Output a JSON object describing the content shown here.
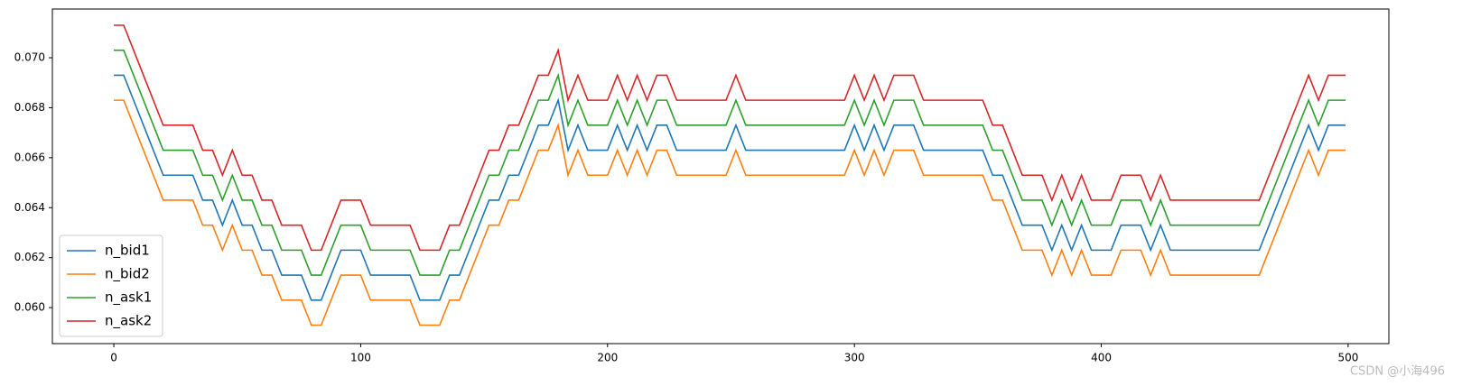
{
  "chart_data": {
    "type": "line",
    "x": [
      0,
      4,
      8,
      12,
      16,
      20,
      24,
      28,
      32,
      36,
      40,
      44,
      48,
      52,
      56,
      60,
      64,
      68,
      72,
      76,
      80,
      84,
      88,
      92,
      96,
      100,
      104,
      108,
      112,
      116,
      120,
      124,
      128,
      132,
      136,
      140,
      144,
      148,
      152,
      156,
      160,
      164,
      168,
      172,
      176,
      180,
      184,
      188,
      192,
      196,
      200,
      204,
      208,
      212,
      216,
      220,
      224,
      228,
      232,
      236,
      240,
      244,
      248,
      252,
      256,
      260,
      264,
      268,
      272,
      276,
      280,
      284,
      288,
      292,
      296,
      300,
      304,
      308,
      312,
      316,
      320,
      324,
      328,
      332,
      336,
      340,
      344,
      348,
      352,
      356,
      360,
      364,
      368,
      372,
      376,
      380,
      384,
      388,
      392,
      396,
      400,
      404,
      408,
      412,
      416,
      420,
      424,
      428,
      432,
      436,
      440,
      444,
      448,
      452,
      456,
      460,
      464,
      468,
      472,
      476,
      480,
      484,
      488,
      492,
      496,
      499
    ],
    "series": [
      {
        "name": "n_bid1",
        "color": "#1f77b4",
        "values": [
          0.0693,
          0.0693,
          0.0683,
          0.0673,
          0.0663,
          0.0653,
          0.0653,
          0.0653,
          0.0653,
          0.0643,
          0.0643,
          0.0633,
          0.0643,
          0.0633,
          0.0633,
          0.0623,
          0.0623,
          0.0613,
          0.0613,
          0.0613,
          0.0603,
          0.0603,
          0.0613,
          0.0623,
          0.0623,
          0.0623,
          0.0613,
          0.0613,
          0.0613,
          0.0613,
          0.0613,
          0.0603,
          0.0603,
          0.0603,
          0.0613,
          0.0613,
          0.0623,
          0.0633,
          0.0643,
          0.0643,
          0.0653,
          0.0653,
          0.0663,
          0.0673,
          0.0673,
          0.0683,
          0.0663,
          0.0673,
          0.0663,
          0.0663,
          0.0663,
          0.0673,
          0.0663,
          0.0673,
          0.0663,
          0.0673,
          0.0673,
          0.0663,
          0.0663,
          0.0663,
          0.0663,
          0.0663,
          0.0663,
          0.0673,
          0.0663,
          0.0663,
          0.0663,
          0.0663,
          0.0663,
          0.0663,
          0.0663,
          0.0663,
          0.0663,
          0.0663,
          0.0663,
          0.0673,
          0.0663,
          0.0673,
          0.0663,
          0.0673,
          0.0673,
          0.0673,
          0.0663,
          0.0663,
          0.0663,
          0.0663,
          0.0663,
          0.0663,
          0.0663,
          0.0653,
          0.0653,
          0.0643,
          0.0633,
          0.0633,
          0.0633,
          0.0623,
          0.0633,
          0.0623,
          0.0633,
          0.0623,
          0.0623,
          0.0623,
          0.0633,
          0.0633,
          0.0633,
          0.0623,
          0.0633,
          0.0623,
          0.0623,
          0.0623,
          0.0623,
          0.0623,
          0.0623,
          0.0623,
          0.0623,
          0.0623,
          0.0623,
          0.0633,
          0.0643,
          0.0653,
          0.0663,
          0.0673,
          0.0663,
          0.0673,
          0.0673,
          0.0673
        ]
      },
      {
        "name": "n_bid2",
        "color": "#ff7f0e",
        "values": [
          0.0683,
          0.0683,
          0.0673,
          0.0663,
          0.0653,
          0.0643,
          0.0643,
          0.0643,
          0.0643,
          0.0633,
          0.0633,
          0.0623,
          0.0633,
          0.0623,
          0.0623,
          0.0613,
          0.0613,
          0.0603,
          0.0603,
          0.0603,
          0.0593,
          0.0593,
          0.0603,
          0.0613,
          0.0613,
          0.0613,
          0.0603,
          0.0603,
          0.0603,
          0.0603,
          0.0603,
          0.0593,
          0.0593,
          0.0593,
          0.0603,
          0.0603,
          0.0613,
          0.0623,
          0.0633,
          0.0633,
          0.0643,
          0.0643,
          0.0653,
          0.0663,
          0.0663,
          0.0673,
          0.0653,
          0.0663,
          0.0653,
          0.0653,
          0.0653,
          0.0663,
          0.0653,
          0.0663,
          0.0653,
          0.0663,
          0.0663,
          0.0653,
          0.0653,
          0.0653,
          0.0653,
          0.0653,
          0.0653,
          0.0663,
          0.0653,
          0.0653,
          0.0653,
          0.0653,
          0.0653,
          0.0653,
          0.0653,
          0.0653,
          0.0653,
          0.0653,
          0.0653,
          0.0663,
          0.0653,
          0.0663,
          0.0653,
          0.0663,
          0.0663,
          0.0663,
          0.0653,
          0.0653,
          0.0653,
          0.0653,
          0.0653,
          0.0653,
          0.0653,
          0.0643,
          0.0643,
          0.0633,
          0.0623,
          0.0623,
          0.0623,
          0.0613,
          0.0623,
          0.0613,
          0.0623,
          0.0613,
          0.0613,
          0.0613,
          0.0623,
          0.0623,
          0.0623,
          0.0613,
          0.0623,
          0.0613,
          0.0613,
          0.0613,
          0.0613,
          0.0613,
          0.0613,
          0.0613,
          0.0613,
          0.0613,
          0.0613,
          0.0623,
          0.0633,
          0.0643,
          0.0653,
          0.0663,
          0.0653,
          0.0663,
          0.0663,
          0.0663
        ]
      },
      {
        "name": "n_ask1",
        "color": "#2ca02c",
        "values": [
          0.0703,
          0.0703,
          0.0693,
          0.0683,
          0.0673,
          0.0663,
          0.0663,
          0.0663,
          0.0663,
          0.0653,
          0.0653,
          0.0643,
          0.0653,
          0.0643,
          0.0643,
          0.0633,
          0.0633,
          0.0623,
          0.0623,
          0.0623,
          0.0613,
          0.0613,
          0.0623,
          0.0633,
          0.0633,
          0.0633,
          0.0623,
          0.0623,
          0.0623,
          0.0623,
          0.0623,
          0.0613,
          0.0613,
          0.0613,
          0.0623,
          0.0623,
          0.0633,
          0.0643,
          0.0653,
          0.0653,
          0.0663,
          0.0663,
          0.0673,
          0.0683,
          0.0683,
          0.0693,
          0.0673,
          0.0683,
          0.0673,
          0.0673,
          0.0673,
          0.0683,
          0.0673,
          0.0683,
          0.0673,
          0.0683,
          0.0683,
          0.0673,
          0.0673,
          0.0673,
          0.0673,
          0.0673,
          0.0673,
          0.0683,
          0.0673,
          0.0673,
          0.0673,
          0.0673,
          0.0673,
          0.0673,
          0.0673,
          0.0673,
          0.0673,
          0.0673,
          0.0673,
          0.0683,
          0.0673,
          0.0683,
          0.0673,
          0.0683,
          0.0683,
          0.0683,
          0.0673,
          0.0673,
          0.0673,
          0.0673,
          0.0673,
          0.0673,
          0.0673,
          0.0663,
          0.0663,
          0.0653,
          0.0643,
          0.0643,
          0.0643,
          0.0633,
          0.0643,
          0.0633,
          0.0643,
          0.0633,
          0.0633,
          0.0633,
          0.0643,
          0.0643,
          0.0643,
          0.0633,
          0.0643,
          0.0633,
          0.0633,
          0.0633,
          0.0633,
          0.0633,
          0.0633,
          0.0633,
          0.0633,
          0.0633,
          0.0633,
          0.0643,
          0.0653,
          0.0663,
          0.0673,
          0.0683,
          0.0673,
          0.0683,
          0.0683,
          0.0683
        ]
      },
      {
        "name": "n_ask2",
        "color": "#d62728",
        "values": [
          0.0713,
          0.0713,
          0.0703,
          0.0693,
          0.0683,
          0.0673,
          0.0673,
          0.0673,
          0.0673,
          0.0663,
          0.0663,
          0.0653,
          0.0663,
          0.0653,
          0.0653,
          0.0643,
          0.0643,
          0.0633,
          0.0633,
          0.0633,
          0.0623,
          0.0623,
          0.0633,
          0.0643,
          0.0643,
          0.0643,
          0.0633,
          0.0633,
          0.0633,
          0.0633,
          0.0633,
          0.0623,
          0.0623,
          0.0623,
          0.0633,
          0.0633,
          0.0643,
          0.0653,
          0.0663,
          0.0663,
          0.0673,
          0.0673,
          0.0683,
          0.0693,
          0.0693,
          0.0703,
          0.0683,
          0.0693,
          0.0683,
          0.0683,
          0.0683,
          0.0693,
          0.0683,
          0.0693,
          0.0683,
          0.0693,
          0.0693,
          0.0683,
          0.0683,
          0.0683,
          0.0683,
          0.0683,
          0.0683,
          0.0693,
          0.0683,
          0.0683,
          0.0683,
          0.0683,
          0.0683,
          0.0683,
          0.0683,
          0.0683,
          0.0683,
          0.0683,
          0.0683,
          0.0693,
          0.0683,
          0.0693,
          0.0683,
          0.0693,
          0.0693,
          0.0693,
          0.0683,
          0.0683,
          0.0683,
          0.0683,
          0.0683,
          0.0683,
          0.0683,
          0.0673,
          0.0673,
          0.0663,
          0.0653,
          0.0653,
          0.0653,
          0.0643,
          0.0653,
          0.0643,
          0.0653,
          0.0643,
          0.0643,
          0.0643,
          0.0653,
          0.0653,
          0.0653,
          0.0643,
          0.0653,
          0.0643,
          0.0643,
          0.0643,
          0.0643,
          0.0643,
          0.0643,
          0.0643,
          0.0643,
          0.0643,
          0.0643,
          0.0653,
          0.0663,
          0.0673,
          0.0683,
          0.0693,
          0.0683,
          0.0693,
          0.0693,
          0.0693
        ]
      }
    ],
    "xlim": [
      -24.9,
      516.5
    ],
    "xticks": [
      0,
      100,
      200,
      300,
      400,
      500
    ],
    "ylim": [
      0.05856,
      0.07195
    ],
    "yticks": [
      {
        "value": 0.06,
        "label": "0.060"
      },
      {
        "value": 0.062,
        "label": "0.062"
      },
      {
        "value": 0.064,
        "label": "0.064"
      },
      {
        "value": 0.066,
        "label": "0.066"
      },
      {
        "value": 0.068,
        "label": "0.068"
      },
      {
        "value": 0.07,
        "label": "0.070"
      }
    ],
    "legend": "lower left",
    "grid": false,
    "watermark": "CSDN @小海496"
  }
}
